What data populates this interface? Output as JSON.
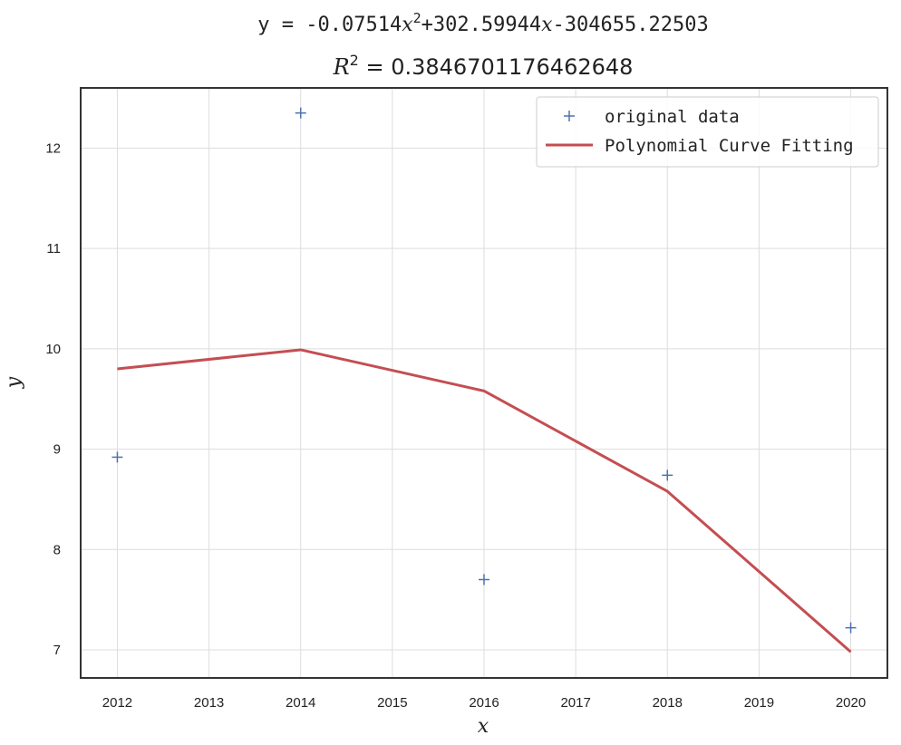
{
  "chart_data": {
    "type": "scatter",
    "title": "y = -0.07514x^2+302.59944x-304655.22503",
    "title_parts": {
      "prefix": "y = -0.",
      "a_digits": "07514",
      "x_var": "x",
      "exp": "2",
      "middle": "+302.",
      "b_digits": "59944",
      "end": "-304655.",
      "c_digits": "22503"
    },
    "subtitle": "R^2 = 0.3846701176462648",
    "subtitle_parts": {
      "r": "R",
      "exp": "2",
      "value": " = 0.3846701176462648"
    },
    "xlabel": "x",
    "ylabel": "y",
    "xlim": [
      2011.6,
      2020.4
    ],
    "ylim": [
      6.72,
      12.6
    ],
    "xticks": [
      2012,
      2013,
      2014,
      2015,
      2016,
      2017,
      2018,
      2019,
      2020
    ],
    "yticks": [
      7,
      8,
      9,
      10,
      11,
      12
    ],
    "grid": true,
    "legend": {
      "placement": "top-right",
      "entries": [
        "original data",
        "Polynomial Curve Fitting"
      ]
    },
    "series": [
      {
        "name": "original data",
        "kind": "marker",
        "marker": "+",
        "color": "#4c72b0",
        "x": [
          2012,
          2014,
          2016,
          2018,
          2020
        ],
        "y": [
          8.92,
          12.35,
          7.7,
          8.74,
          7.22
        ]
      },
      {
        "name": "Polynomial Curve Fitting",
        "kind": "line",
        "color": "#c44e52",
        "x": [
          2012,
          2014,
          2016,
          2018,
          2020
        ],
        "y": [
          9.8,
          9.99,
          9.58,
          8.58,
          6.98
        ]
      }
    ]
  }
}
